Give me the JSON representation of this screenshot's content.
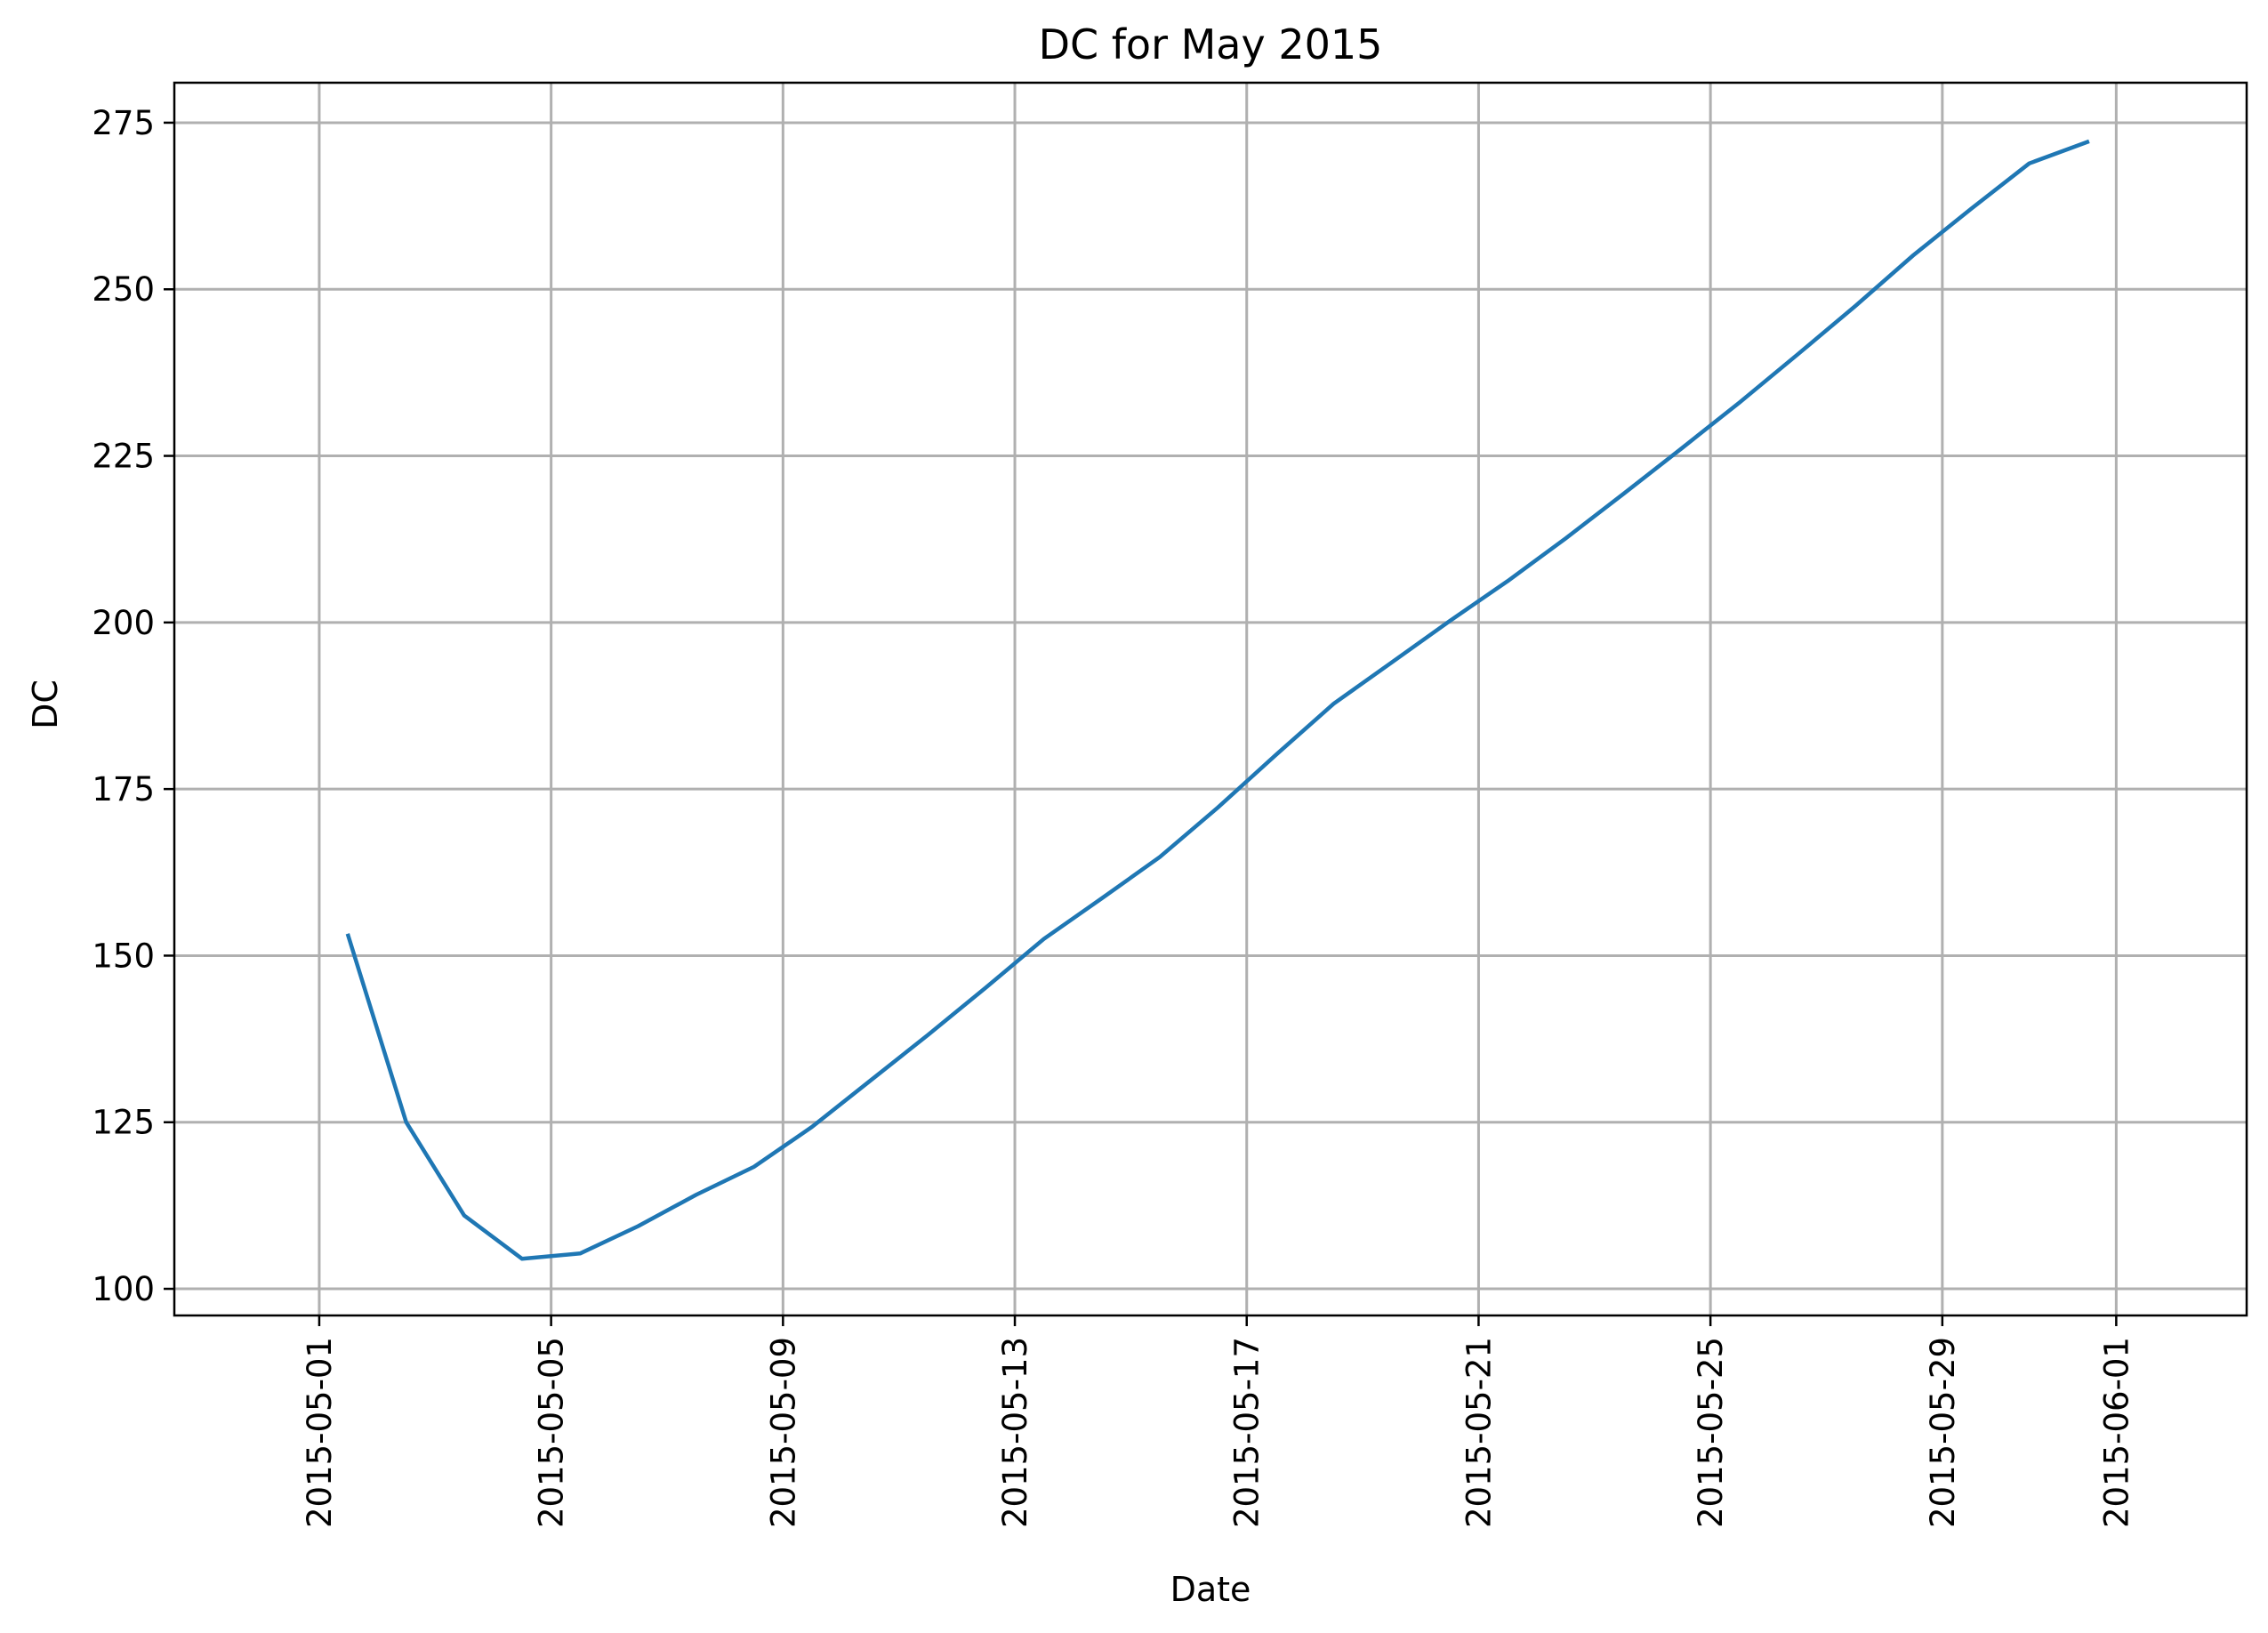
{
  "chart_data": {
    "type": "line",
    "title": "DC for May 2015",
    "xlabel": "Date",
    "ylabel": "DC",
    "grid": true,
    "x_ticks": [
      "2015-05-01",
      "2015-05-05",
      "2015-05-09",
      "2015-05-13",
      "2015-05-17",
      "2015-05-21",
      "2015-05-25",
      "2015-05-29",
      "2015-06-01"
    ],
    "y_ticks": [
      100,
      125,
      150,
      175,
      200,
      225,
      250,
      275
    ],
    "xlim": [
      "2015-04-28T12:00",
      "2015-06-03T06:00"
    ],
    "ylim": [
      96,
      281
    ],
    "series": [
      {
        "color": "#1f77b4",
        "x": [
          "2015-05-01T12:00",
          "2015-05-02T12:00",
          "2015-05-03T12:00",
          "2015-05-04T12:00",
          "2015-05-05T12:00",
          "2015-05-06T12:00",
          "2015-05-07T12:00",
          "2015-05-08T12:00",
          "2015-05-09T12:00",
          "2015-05-10T12:00",
          "2015-05-11T12:00",
          "2015-05-12T12:00",
          "2015-05-13T12:00",
          "2015-05-14T12:00",
          "2015-05-15T12:00",
          "2015-05-16T12:00",
          "2015-05-17T12:00",
          "2015-05-18T12:00",
          "2015-05-19T12:00",
          "2015-05-20T12:00",
          "2015-05-21T12:00",
          "2015-05-22T12:00",
          "2015-05-23T12:00",
          "2015-05-24T12:00",
          "2015-05-25T12:00",
          "2015-05-26T12:00",
          "2015-05-27T12:00",
          "2015-05-28T12:00",
          "2015-05-29T12:00",
          "2015-05-30T12:00",
          "2015-05-31T12:00"
        ],
        "values": [
          153,
          125,
          111,
          104.5,
          105.3,
          109.4,
          114.1,
          118.3,
          124.3,
          131.2,
          138.1,
          145.2,
          152.5,
          158.6,
          164.8,
          172.2,
          180.1,
          187.8,
          194.0,
          200.2,
          206.2,
          212.6,
          219.3,
          226.1,
          233.0,
          240.2,
          247.5,
          255.1,
          262.1,
          268.9,
          272.1
        ]
      }
    ]
  }
}
